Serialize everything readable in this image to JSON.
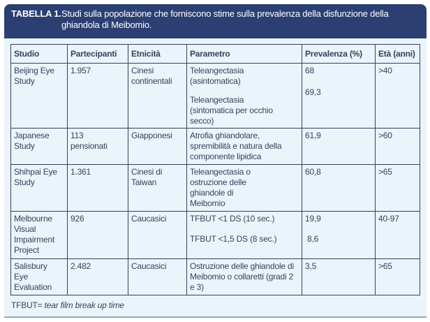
{
  "table_title": {
    "label": "TABELLA 1.",
    "text": "Studi sulla popolazione che forniscono stime sulla prevalenza della disfunzione della ghiandola di Meibomio."
  },
  "columns": [
    "Studio",
    "Partecipanti",
    "Etnicità",
    "Parametro",
    "Prevalenza (%)",
    "Età (anni)"
  ],
  "rows": [
    {
      "studio": "Beijing Eye Study",
      "partecipanti": "1.957",
      "etnicita": "Cinesi continentali",
      "parametri": [
        "Teleangectasia (asintomatica)",
        "Teleangectasia (sintomatica per occhio secco)"
      ],
      "prevalenze": [
        "68",
        "69,3"
      ],
      "eta": ">40"
    },
    {
      "studio": "Japanese Study",
      "partecipanti": "113 pensionati",
      "etnicita": "Giapponesi",
      "parametri": [
        "Atrofia ghiandolare, spremibilità e natura della componente lipidica"
      ],
      "prevalenze": [
        "61,9"
      ],
      "eta": ">60"
    },
    {
      "studio": "Shihpai Eye Study",
      "partecipanti": "1.361",
      "etnicita": "Cinesi di Taiwan",
      "parametri": [
        "Teleangectasia o ostruzione delle ghiandole di Meibomio"
      ],
      "prevalenze": [
        "60,8"
      ],
      "eta": ">65"
    },
    {
      "studio": "Melbourne Visual Impairment Project",
      "partecipanti": "926",
      "etnicita": "Caucasici",
      "parametri": [
        "TFBUT <1 DS (10 sec.)",
        "TFBUT <1,5 DS (8 sec.)"
      ],
      "prevalenze": [
        "19,9",
        "8,6"
      ],
      "eta": "40-97"
    },
    {
      "studio": "Salisbury Eye Evaluation",
      "partecipanti": "2.482",
      "etnicita": "Caucasici",
      "parametri": [
        "Ostruzione delle ghiandole di Meibomio o collaretti (gradi 2 e 3)"
      ],
      "prevalenze": [
        "3,5"
      ],
      "eta": ">65"
    }
  ],
  "footnote": {
    "abbr": "TFBUT=",
    "definition": "tear film break up time"
  },
  "colors": {
    "header_bg": "#2b3f73",
    "panel_bg": "#e9f4fb",
    "text": "#3a3f5c"
  }
}
